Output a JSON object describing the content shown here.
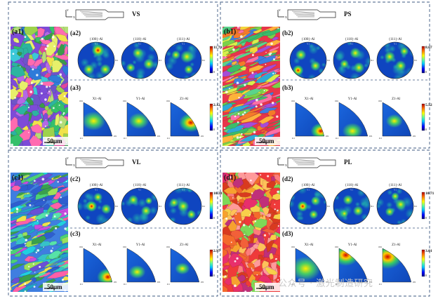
{
  "quadrants": [
    {
      "id": "a",
      "title": "VS",
      "map_label": "(a1)",
      "scale_bar": "50μm",
      "pf_label": "(a2)",
      "ipf_label": "(a3)",
      "pf_titles": [
        "{100}-Al",
        "{110}-Al",
        "{111}-Al"
      ],
      "ipf_titles": [
        "X1-Al",
        "Y1-Al",
        "Z1-Al"
      ],
      "pf_max": "11.70",
      "ipf_max": "2.12",
      "colorbar_min": "0"
    },
    {
      "id": "b",
      "title": "PS",
      "map_label": "(b1)",
      "scale_bar": "50μm",
      "pf_label": "(b2)",
      "ipf_label": "(b3)",
      "pf_titles": [
        "{100}-Al",
        "{110}-Al",
        "{111}-Al"
      ],
      "ipf_titles": [
        "X1-Al",
        "Y1-Al",
        "Z1-Al"
      ],
      "pf_max": "8.67",
      "ipf_max": "5.52",
      "colorbar_min": "0"
    },
    {
      "id": "c",
      "title": "VL",
      "map_label": "(c1)",
      "scale_bar": "50μm",
      "pf_label": "(c2)",
      "ipf_label": "(c3)",
      "pf_titles": [
        "{100}-Al",
        "{110}-Al",
        "{111}-Al"
      ],
      "ipf_titles": [
        "X1-Al",
        "Y1-Al",
        "Z1-Al"
      ],
      "pf_max": "10.30",
      "ipf_max": "2.97",
      "colorbar_min": "0"
    },
    {
      "id": "d",
      "title": "PL",
      "map_label": "(d1)",
      "scale_bar": "50μm",
      "pf_label": "(d2)",
      "ipf_label": "(d3)",
      "pf_titles": [
        "{100}-Al",
        "{110}-Al",
        "{111}-Al"
      ],
      "ipf_titles": [
        "X1-Al",
        "Y1-Al",
        "Z1-Al"
      ],
      "pf_max": "10.71",
      "ipf_max": "3.01",
      "colorbar_min": "0"
    }
  ],
  "axes": {
    "y": "Y",
    "x": "X"
  },
  "pole_axis_labels": {
    "top": "Y1",
    "right": "X1"
  },
  "ipf_corner_labels": [
    "001",
    "101",
    "111"
  ],
  "watermark": "公众号 · 激光制造研究",
  "colors": {
    "border_dash": "#3d5a80",
    "jet": [
      "#00007f",
      "#0000ff",
      "#007fff",
      "#00ffff",
      "#7fff7f",
      "#ffff00",
      "#ff7f00",
      "#ff0000",
      "#7f0000"
    ]
  }
}
